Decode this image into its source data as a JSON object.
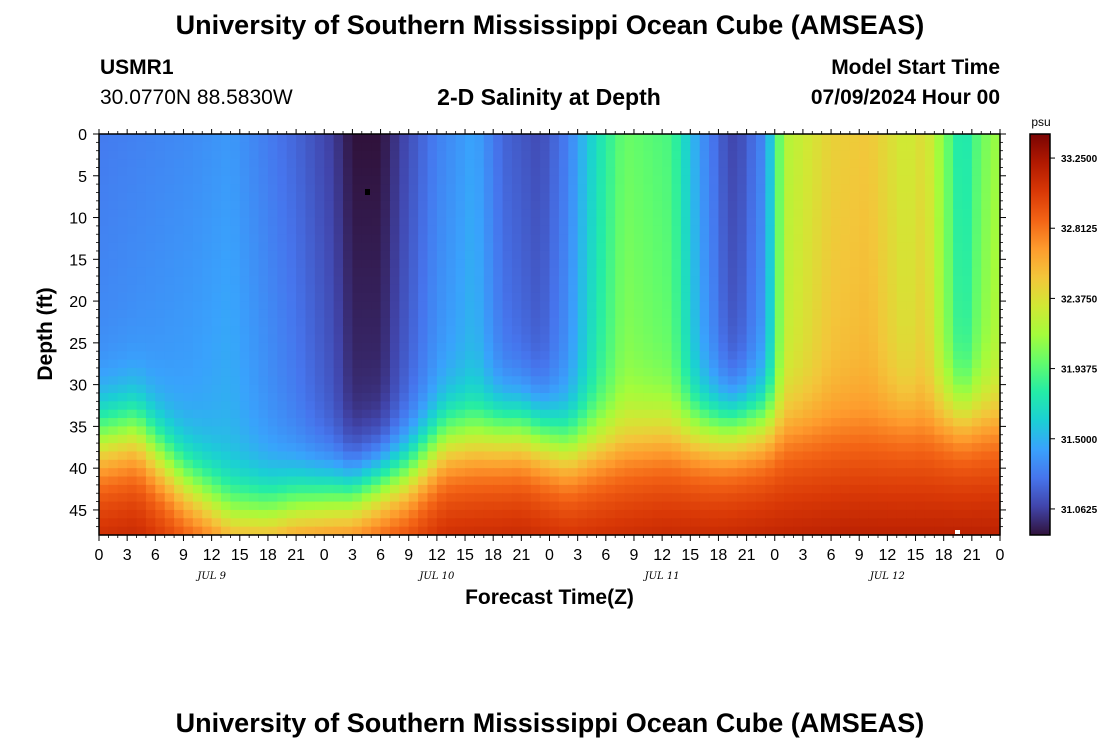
{
  "page": {
    "title_top": "University of Southern Mississippi Ocean Cube (AMSEAS)",
    "title_bottom": "University of Southern Mississippi Ocean Cube (AMSEAS)",
    "station_id": "USMR1",
    "coordinates": "30.0770N  88.5830W",
    "plot_title": "2-D Salinity at Depth",
    "model_label": "Model Start Time",
    "model_time": "07/09/2024 Hour 00"
  },
  "chart_data": {
    "type": "heatmap",
    "title": "2-D Salinity at Depth",
    "xlabel": "Forecast Time(Z)",
    "ylabel": "Depth (ft)",
    "x_units": "hours since 07/09/2024 00Z",
    "xlim": [
      0,
      96
    ],
    "ylim": [
      0,
      48
    ],
    "x_tick_values": [
      0,
      3,
      6,
      9,
      12,
      15,
      18,
      21,
      24,
      27,
      30,
      33,
      36,
      39,
      42,
      45,
      48,
      51,
      54,
      57,
      60,
      63,
      66,
      69,
      72,
      75,
      78,
      81,
      84,
      87,
      90,
      93,
      96
    ],
    "x_tick_labels": [
      "0",
      "3",
      "6",
      "9",
      "12",
      "15",
      "18",
      "21",
      "0",
      "3",
      "6",
      "9",
      "12",
      "15",
      "18",
      "21",
      "0",
      "3",
      "6",
      "9",
      "12",
      "15",
      "18",
      "21",
      "0",
      "3",
      "6",
      "9",
      "12",
      "15",
      "18",
      "21",
      "0"
    ],
    "date_labels": [
      {
        "text": "JUL 9",
        "hour": 12
      },
      {
        "text": "JUL 10",
        "hour": 36
      },
      {
        "text": "JUL 11",
        "hour": 60
      },
      {
        "text": "JUL 12",
        "hour": 84
      }
    ],
    "y_tick_values": [
      0,
      5,
      10,
      15,
      20,
      25,
      30,
      35,
      40,
      45
    ],
    "y_tick_labels": [
      "0",
      "5",
      "10",
      "15",
      "20",
      "25",
      "30",
      "35",
      "40",
      "45"
    ],
    "colorbar": {
      "units": "psu",
      "min": 30.9,
      "max": 33.4,
      "tick_values": [
        33.25,
        32.8125,
        32.375,
        31.9375,
        31.5,
        31.0625
      ],
      "tick_labels": [
        "33.2500",
        "32.8125",
        "32.3750",
        "31.9375",
        "31.5000",
        "31.0625"
      ]
    },
    "layer_depth_ft": [
      [
        0,
        36
      ],
      [
        4,
        35
      ],
      [
        9,
        41
      ],
      [
        14,
        45
      ],
      [
        18,
        45
      ],
      [
        21,
        44
      ],
      [
        27,
        43
      ],
      [
        33,
        40
      ],
      [
        37,
        36
      ],
      [
        45,
        35
      ],
      [
        50,
        37
      ],
      [
        55,
        36
      ],
      [
        60,
        35
      ],
      [
        66,
        35
      ],
      [
        72,
        34
      ],
      [
        80,
        33
      ],
      [
        86,
        33
      ],
      [
        92,
        33
      ],
      [
        96,
        33
      ]
    ],
    "surface_salinity_psu": [
      [
        0,
        31.28
      ],
      [
        10,
        31.35
      ],
      [
        14,
        31.4
      ],
      [
        21,
        31.2
      ],
      [
        25,
        31.05
      ],
      [
        27,
        30.9
      ],
      [
        30,
        30.9
      ],
      [
        32,
        31.05
      ],
      [
        36,
        31.3
      ],
      [
        40,
        31.45
      ],
      [
        43,
        31.2
      ],
      [
        47,
        31.1
      ],
      [
        50,
        31.3
      ],
      [
        53,
        31.7
      ],
      [
        56,
        32.0
      ],
      [
        61,
        31.9
      ],
      [
        64,
        31.4
      ],
      [
        67,
        31.1
      ],
      [
        68,
        31.08
      ],
      [
        71,
        31.35
      ],
      [
        73,
        32.2
      ],
      [
        78,
        32.45
      ],
      [
        82,
        32.5
      ],
      [
        86,
        32.3
      ],
      [
        88,
        32.4
      ],
      [
        92,
        31.7
      ],
      [
        94,
        32.0
      ],
      [
        96,
        32.15
      ]
    ],
    "bottom_salinity_psu": 32.8
  },
  "colors": {
    "scale": [
      "#30123b",
      "#4145ab",
      "#4675ed",
      "#39a2fc",
      "#1bcfd4",
      "#24eca6",
      "#61fc6c",
      "#a4fc3b",
      "#d1e834",
      "#f3c63a",
      "#fe9b2d",
      "#f36315",
      "#d93806",
      "#b11901",
      "#7a0403"
    ]
  }
}
